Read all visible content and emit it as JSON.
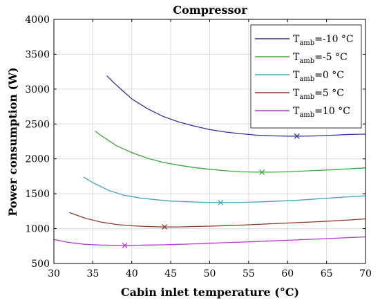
{
  "chart_data": {
    "type": "line",
    "title": "Compressor",
    "xlabel": "Cabin inlet temperature (°C)",
    "ylabel": "Power consumption (W)",
    "xlim": [
      30,
      70
    ],
    "ylim": [
      500,
      4000
    ],
    "x_ticks": [
      30,
      35,
      40,
      45,
      50,
      55,
      60,
      65,
      70
    ],
    "y_ticks": [
      500,
      1000,
      1500,
      2000,
      2500,
      3000,
      3500,
      4000
    ],
    "grid": true,
    "legend_position": "top-right",
    "legend_prefix": "T",
    "legend_subscript": "amb",
    "series": [
      {
        "name": "=-10 °C",
        "color": "#2e2e9a",
        "x": [
          36.8,
          38,
          40,
          42,
          44,
          46,
          48,
          50,
          52,
          54,
          56,
          58,
          60,
          62,
          64,
          66,
          68,
          70
        ],
        "y": [
          3190,
          3060,
          2860,
          2720,
          2610,
          2530,
          2470,
          2420,
          2385,
          2360,
          2340,
          2330,
          2325,
          2325,
          2330,
          2340,
          2350,
          2355
        ],
        "marker": {
          "x": 61.2,
          "y": 2325
        }
      },
      {
        "name": "=-5 °C",
        "color": "#3aa53a",
        "x": [
          35.3,
          36,
          38,
          40,
          42,
          44,
          46,
          48,
          50,
          52,
          54,
          56,
          58,
          60,
          62,
          64,
          66,
          68,
          70
        ],
        "y": [
          2400,
          2340,
          2190,
          2090,
          2010,
          1950,
          1910,
          1875,
          1850,
          1830,
          1815,
          1810,
          1810,
          1815,
          1825,
          1835,
          1845,
          1858,
          1870
        ],
        "marker": {
          "x": 56.7,
          "y": 1808
        }
      },
      {
        "name": "=0 °C",
        "color": "#4aa3c0",
        "x": [
          33.8,
          35,
          37,
          39,
          41,
          43,
          45,
          47,
          49,
          51,
          53,
          55,
          57,
          59,
          61,
          63,
          65,
          67,
          70
        ],
        "y": [
          1740,
          1660,
          1550,
          1480,
          1440,
          1415,
          1395,
          1385,
          1378,
          1375,
          1375,
          1378,
          1385,
          1395,
          1405,
          1420,
          1435,
          1450,
          1470
        ],
        "marker": {
          "x": 51.4,
          "y": 1373
        }
      },
      {
        "name": "=5 °C",
        "color": "#8b3a2a",
        "x": [
          32,
          34,
          36,
          38,
          40,
          42,
          44,
          46,
          48,
          50,
          52,
          54,
          56,
          58,
          60,
          62,
          64,
          66,
          68,
          70
        ],
        "y": [
          1230,
          1150,
          1095,
          1060,
          1040,
          1030,
          1025,
          1025,
          1030,
          1035,
          1042,
          1050,
          1060,
          1070,
          1080,
          1090,
          1100,
          1112,
          1125,
          1140
        ],
        "marker": {
          "x": 44.2,
          "y": 1025
        }
      },
      {
        "name": "=10 °C",
        "color": "#b23ad0",
        "x": [
          30,
          32,
          34,
          36,
          38,
          40,
          42,
          44,
          46,
          48,
          50,
          52,
          54,
          56,
          58,
          60,
          62,
          64,
          66,
          68,
          70
        ],
        "y": [
          845,
          800,
          775,
          765,
          760,
          760,
          765,
          768,
          775,
          782,
          790,
          798,
          806,
          815,
          824,
          833,
          842,
          852,
          862,
          872,
          882
        ],
        "marker": {
          "x": 39.1,
          "y": 760
        }
      }
    ]
  }
}
